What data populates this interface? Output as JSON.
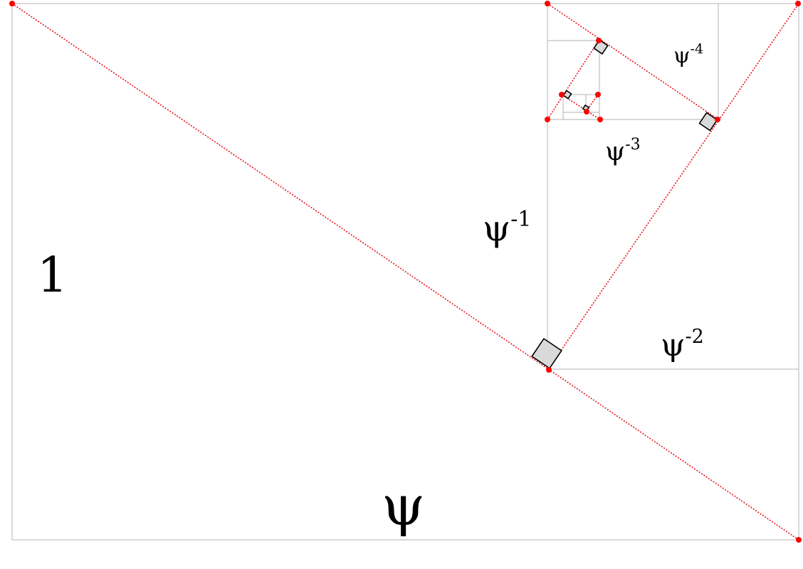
{
  "labels": {
    "one": "1",
    "psi": "ψ",
    "psi_inv1": {
      "base": "ψ",
      "exp": "-1"
    },
    "psi_inv2": {
      "base": "ψ",
      "exp": "-2"
    },
    "psi_inv3": {
      "base": "ψ",
      "exp": "-3"
    },
    "psi_inv4": {
      "base": "ψ",
      "exp": "-4"
    }
  },
  "colors": {
    "frame": "#b3b3b3",
    "diagonal": "#e8141c",
    "point": "#ff0000",
    "right_angle_fill": "#d9d9d9",
    "right_angle_stroke": "#000000",
    "text": "#000000"
  }
}
